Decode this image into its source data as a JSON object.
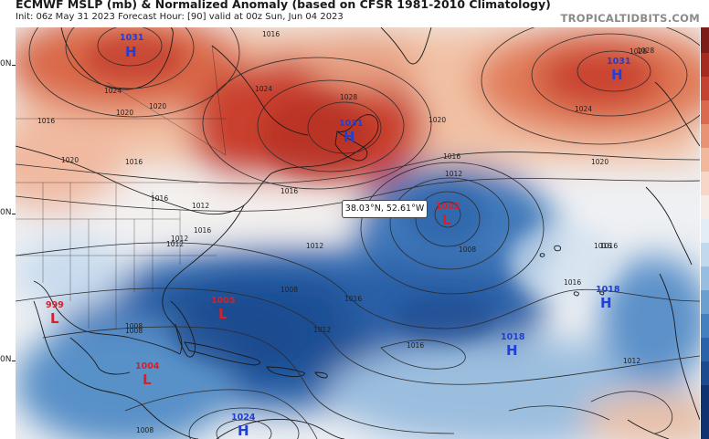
{
  "header": {
    "title": "ECMWF MSLP (mb) & Normalized Anomaly (based on CFSR 1981-2010 Climatology)",
    "subtitle": "Init: 06z May 31 2023   Forecast Hour: [90]   valid at 00z Sun, Jun 04 2023",
    "brand": "TROPICALTIDBITS.COM"
  },
  "axis": {
    "lat_labels": [
      "0N",
      "0N",
      "0N"
    ]
  },
  "probe": {
    "text": "38.03°N, 52.61°W"
  },
  "pressure_systems": [
    {
      "type": "H",
      "value": "1031",
      "region": "hudson-bay"
    },
    {
      "type": "H",
      "value": "1031",
      "region": "newfoundland"
    },
    {
      "type": "H",
      "value": "1031",
      "region": "northeast-atlantic"
    },
    {
      "type": "L",
      "value": "1002",
      "region": "central-atlantic"
    },
    {
      "type": "L",
      "value": "1005",
      "region": "florida"
    },
    {
      "type": "L",
      "value": "999",
      "region": "mexico"
    },
    {
      "type": "L",
      "value": "1004",
      "region": "central-america"
    },
    {
      "type": "H",
      "value": "1018",
      "region": "azores"
    },
    {
      "type": "H",
      "value": "1018",
      "region": "subtropical-atlantic"
    },
    {
      "type": "H",
      "value": "1024",
      "region": "south-america"
    }
  ],
  "isobar_labels": [
    "1016",
    "1020",
    "1024",
    "1028",
    "1028",
    "1024",
    "1020",
    "1016",
    "1020",
    "1016",
    "1012",
    "1008",
    "1012",
    "1016",
    "1020",
    "1016",
    "1012",
    "1016",
    "1008",
    "1012",
    "1008",
    "1016",
    "1016",
    "1012",
    "1028",
    "1024",
    "1020",
    "1016",
    "1016",
    "1012",
    "1008",
    "1008",
    "1012",
    "1016",
    "1016"
  ],
  "colors": {
    "high_text": "#1f3fd6",
    "low_text": "#d6202a",
    "positive_anomaly": "#c0392b",
    "negative_anomaly": "#1f5aa8",
    "neutral": "#f4f1ee"
  }
}
